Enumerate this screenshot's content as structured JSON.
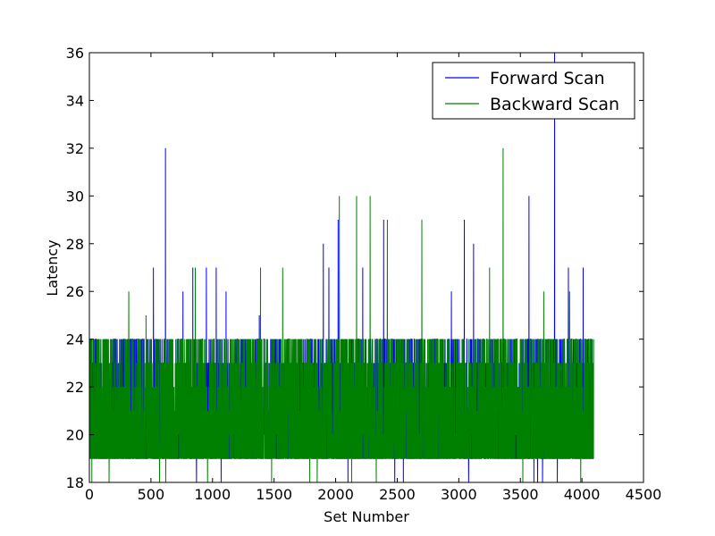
{
  "chart_data": {
    "type": "line",
    "title": "",
    "xlabel": "Set Number",
    "ylabel": "Latency",
    "xlim": [
      0,
      4500
    ],
    "ylim": [
      18,
      36
    ],
    "xticks": [
      0,
      500,
      1000,
      1500,
      2000,
      2500,
      3000,
      3500,
      4000,
      4500
    ],
    "yticks": [
      18,
      20,
      22,
      24,
      26,
      28,
      30,
      32,
      34,
      36
    ],
    "grid": false,
    "legend_position": "top-right",
    "n_points": 4096,
    "series": [
      {
        "name": "Forward Scan",
        "color": "#0000ff",
        "baseline_range": [
          19,
          24
        ],
        "spikes": [
          {
            "x": 520,
            "y": 27
          },
          {
            "x": 618,
            "y": 32
          },
          {
            "x": 760,
            "y": 26
          },
          {
            "x": 840,
            "y": 27
          },
          {
            "x": 870,
            "y": 18
          },
          {
            "x": 950,
            "y": 27
          },
          {
            "x": 1030,
            "y": 27
          },
          {
            "x": 1070,
            "y": 18
          },
          {
            "x": 1110,
            "y": 26
          },
          {
            "x": 1380,
            "y": 25
          },
          {
            "x": 1900,
            "y": 28
          },
          {
            "x": 1945,
            "y": 27
          },
          {
            "x": 2020,
            "y": 29
          },
          {
            "x": 2100,
            "y": 18
          },
          {
            "x": 2220,
            "y": 27
          },
          {
            "x": 2390,
            "y": 29
          },
          {
            "x": 2480,
            "y": 18
          },
          {
            "x": 2550,
            "y": 18
          },
          {
            "x": 2940,
            "y": 26
          },
          {
            "x": 3045,
            "y": 29
          },
          {
            "x": 3080,
            "y": 18
          },
          {
            "x": 3120,
            "y": 28
          },
          {
            "x": 3570,
            "y": 30
          },
          {
            "x": 3610,
            "y": 18
          },
          {
            "x": 3640,
            "y": 18
          },
          {
            "x": 3680,
            "y": 18
          },
          {
            "x": 3778,
            "y": 36
          },
          {
            "x": 3800,
            "y": 18
          },
          {
            "x": 3890,
            "y": 27
          },
          {
            "x": 4010,
            "y": 27
          }
        ]
      },
      {
        "name": "Backward Scan",
        "color": "#008000",
        "baseline_range": [
          19,
          24
        ],
        "spikes": [
          {
            "x": 20,
            "y": 18
          },
          {
            "x": 160,
            "y": 18
          },
          {
            "x": 320,
            "y": 26
          },
          {
            "x": 460,
            "y": 25
          },
          {
            "x": 570,
            "y": 18
          },
          {
            "x": 620,
            "y": 18
          },
          {
            "x": 860,
            "y": 27
          },
          {
            "x": 960,
            "y": 18
          },
          {
            "x": 1390,
            "y": 27
          },
          {
            "x": 1480,
            "y": 18
          },
          {
            "x": 1570,
            "y": 27
          },
          {
            "x": 1790,
            "y": 18
          },
          {
            "x": 1850,
            "y": 18
          },
          {
            "x": 2030,
            "y": 30
          },
          {
            "x": 2130,
            "y": 18
          },
          {
            "x": 2170,
            "y": 30
          },
          {
            "x": 2280,
            "y": 30
          },
          {
            "x": 2330,
            "y": 18
          },
          {
            "x": 2420,
            "y": 29
          },
          {
            "x": 2700,
            "y": 29
          },
          {
            "x": 3250,
            "y": 27
          },
          {
            "x": 3360,
            "y": 32
          },
          {
            "x": 3520,
            "y": 18
          },
          {
            "x": 3690,
            "y": 26
          },
          {
            "x": 3900,
            "y": 26
          },
          {
            "x": 3990,
            "y": 18
          }
        ]
      }
    ]
  }
}
